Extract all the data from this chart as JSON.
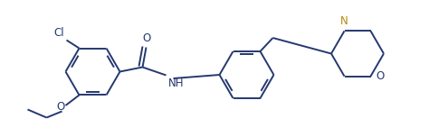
{
  "bg_color": "#ffffff",
  "bond_color": "#253870",
  "atom_color": "#253870",
  "n_color": "#b8860b",
  "o_color": "#253870",
  "line_width": 1.4,
  "font_size": 8.5,
  "figsize": [
    4.95,
    1.52
  ],
  "dpi": 100,
  "xlim": [
    0,
    9.9
  ],
  "ylim": [
    0,
    3.04
  ]
}
